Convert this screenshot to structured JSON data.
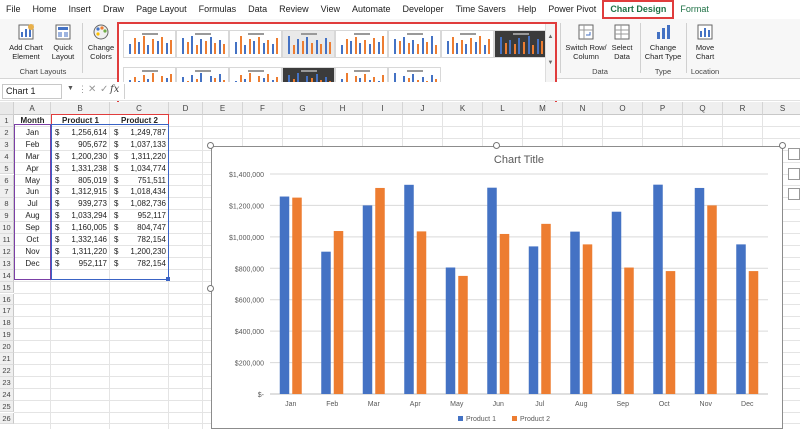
{
  "menu": {
    "tabs": [
      "File",
      "Home",
      "Insert",
      "Draw",
      "Page Layout",
      "Formulas",
      "Data",
      "Review",
      "View",
      "Automate",
      "Developer",
      "Time Savers",
      "Help",
      "Power Pivot"
    ],
    "active_tab": "Chart Design",
    "format_tab": "Format"
  },
  "ribbon": {
    "add_chart_element": "Add Chart\nElement",
    "quick_layout": "Quick\nLayout",
    "chart_layouts_group": "Chart Layouts",
    "change_colors": "Change\nColors",
    "switch_row_column": "Switch Row/\nColumn",
    "select_data": "Select\nData",
    "data_group": "Data",
    "change_chart_type": "Change\nChart Type",
    "type_group": "Type",
    "move_chart": "Move\nChart",
    "location_group": "Location"
  },
  "formula_bar": {
    "name_box": "Chart 1",
    "fx": "fx",
    "formula": ""
  },
  "columns": [
    "A",
    "B",
    "C",
    "D",
    "E",
    "F",
    "G",
    "H",
    "I",
    "J",
    "K",
    "L",
    "M",
    "N",
    "O",
    "P",
    "Q",
    "R",
    "S"
  ],
  "rows": [
    "1",
    "2",
    "3",
    "4",
    "5",
    "6",
    "7",
    "8",
    "9",
    "10",
    "11",
    "12",
    "13",
    "14",
    "15",
    "16",
    "17",
    "18",
    "19",
    "20",
    "21",
    "22",
    "23",
    "24",
    "25",
    "26"
  ],
  "table": {
    "headers": [
      "Month",
      "Product 1",
      "Product 2"
    ],
    "currency": "$",
    "rows": [
      [
        "Jan",
        "1,256,614",
        "1,249,787"
      ],
      [
        "Feb",
        "905,672",
        "1,037,133"
      ],
      [
        "Mar",
        "1,200,230",
        "1,311,220"
      ],
      [
        "Apr",
        "1,331,238",
        "1,034,774"
      ],
      [
        "May",
        "805,019",
        "751,511"
      ],
      [
        "Jun",
        "1,312,915",
        "1,018,434"
      ],
      [
        "Jul",
        "939,273",
        "1,082,736"
      ],
      [
        "Aug",
        "1,033,294",
        "952,117"
      ],
      [
        "Sep",
        "1,160,005",
        "804,747"
      ],
      [
        "Oct",
        "1,332,146",
        "782,154"
      ],
      [
        "Nov",
        "1,311,220",
        "1,200,230"
      ],
      [
        "Dec",
        "952,117",
        "782,154"
      ]
    ]
  },
  "chart_data": {
    "type": "bar",
    "title": "Chart Title",
    "categories": [
      "Jan",
      "Feb",
      "Mar",
      "Apr",
      "May",
      "Jun",
      "Jul",
      "Aug",
      "Sep",
      "Oct",
      "Nov",
      "Dec"
    ],
    "series": [
      {
        "name": "Product 1",
        "color": "#4472c4",
        "values": [
          1256614,
          905672,
          1200230,
          1331238,
          805019,
          1312915,
          939273,
          1033294,
          1160005,
          1332146,
          1311220,
          952117
        ]
      },
      {
        "name": "Product 2",
        "color": "#ed7d31",
        "values": [
          1249787,
          1037133,
          1311220,
          1034774,
          751511,
          1018434,
          1082736,
          952117,
          804747,
          782154,
          1200230,
          782154
        ]
      }
    ],
    "ylim": [
      0,
      1400000
    ],
    "yticks": [
      0,
      200000,
      400000,
      600000,
      800000,
      1000000,
      1200000,
      1400000
    ],
    "ytick_labels": [
      "$-",
      "$200,000",
      "$400,000",
      "$600,000",
      "$800,000",
      "$1,000,000",
      "$1,200,000",
      "$1,400,000"
    ],
    "grid": true,
    "legend": "bottom"
  }
}
